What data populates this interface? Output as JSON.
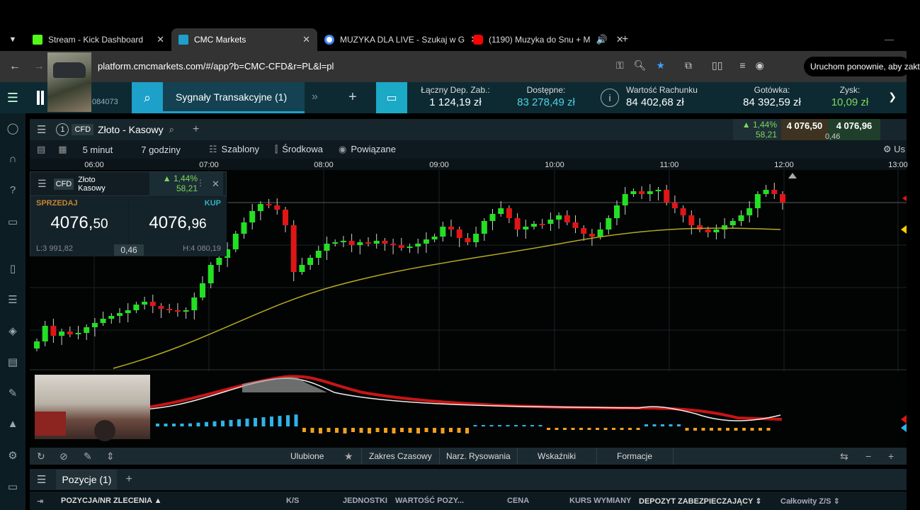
{
  "browser": {
    "tabs": [
      {
        "label": "Stream - Kick Dashboard",
        "color": "#53fc18"
      },
      {
        "label": "CMC Markets",
        "color": "#1da0c9"
      },
      {
        "label": "MUZYKA DLA LIVE - Szukaj w G",
        "color": "#4285f4"
      },
      {
        "label": "(1190) Muzyka do Snu + M",
        "color": "#ff0000"
      }
    ],
    "active_tab": 1,
    "url": "platform.cmcmarkets.com/#/app?b=CMC-CFD&r=PL&l=pl",
    "restart_label": "Uruchom ponownie, aby zakt"
  },
  "header": {
    "account_suffix": "084073",
    "signals_tab": "Sygnały Transakcyjne (1)",
    "stats": [
      {
        "label": "Łączny Dep. Zab.:",
        "value": "1 124,19 zł",
        "style": "white"
      },
      {
        "label": "Dostępne:",
        "value": "83 278,49 zł",
        "style": "cyan"
      },
      {
        "label": "Wartość Rachunku",
        "value": "84 402,68 zł",
        "style": "white"
      },
      {
        "label": "Gotówka:",
        "value": "84 392,59 zł",
        "style": "white"
      },
      {
        "label": "Zysk:",
        "value": "10,09 zł",
        "style": "green"
      }
    ]
  },
  "instrument": {
    "tab_number": "1",
    "type": "CFD",
    "name": "Złoto - Kasowy",
    "ticket_name_line1": "Złoto",
    "ticket_name_line2": "Kasowy",
    "change_pct": "1,44%",
    "change_abs": "58,21",
    "sell": "4 076,50",
    "buy": "4 076,96",
    "spread": "0,46",
    "sell_label": "SPRZEDAJ",
    "buy_label": "KUP",
    "sell_main": "4076,",
    "sell_dec": "50",
    "buy_main": "4076,",
    "buy_dec": "96",
    "low": "L:3 991,82",
    "high": "H:4 080,19"
  },
  "chart_toolbar": {
    "interval": "5 minut",
    "range": "7 godziny",
    "templates": "Szablony",
    "study": "Środkowa",
    "linked": "Powiązane",
    "right_label": "Us"
  },
  "chart_data": {
    "type": "candlestick",
    "x_tick_labels": [
      "06:00",
      "07:00",
      "08:00",
      "09:00",
      "10:00",
      "11:00",
      "12:00",
      "13:00"
    ],
    "colors": {
      "up": "#22e022",
      "down": "#e01515",
      "moving_average": "#b5a920"
    }
  },
  "bottom_toolbar": {
    "favorites": "Ulubione",
    "time_range": "Zakres Czasowy",
    "drawing": "Narz. Rysowania",
    "indicators": "Wskaźniki",
    "patterns": "Formacje"
  },
  "positions": {
    "tab": "Pozycje (1)",
    "columns": [
      "POZYCJA/NR ZLECENIA",
      "K/S",
      "JEDNOSTKI",
      "WARTOŚĆ POZY...",
      "CENA",
      "KURS WYMIANY",
      "DEPOZYT ZABEZPIECZAJĄCY",
      "Całkowity Z/S"
    ]
  }
}
